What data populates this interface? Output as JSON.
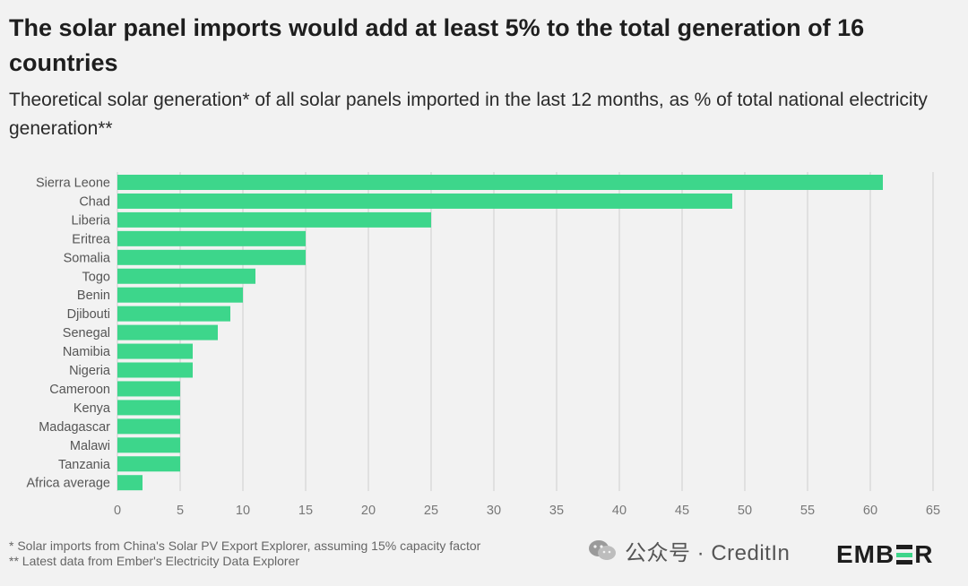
{
  "title": "The solar panel imports would add at least 5% to the total generation of 16 countries",
  "subtitle": "Theoretical solar generation* of all solar panels imported in the last 12 months, as % of total national electricity generation**",
  "footnotes": [
    "* Solar imports from China's Solar PV Export Explorer, assuming 15% capacity factor",
    "** Latest data from Ember's Electricity Data Explorer"
  ],
  "watermark": "公众号 · CreditIn",
  "logo": {
    "before": "EMB",
    "after": "R"
  },
  "colors": {
    "bar": "#3dd68b",
    "grid": "#cfcfcf",
    "background": "#f2f2f2",
    "accent": "#3ed58a"
  },
  "chart_data": {
    "type": "bar",
    "orientation": "horizontal",
    "title": "The solar panel imports would add at least 5% to the total generation of 16 countries",
    "subtitle": "Theoretical solar generation* of all solar panels imported in the last 12 months, as % of total national electricity generation**",
    "xlabel": "",
    "ylabel": "",
    "categories": [
      "Sierra Leone",
      "Chad",
      "Liberia",
      "Eritrea",
      "Somalia",
      "Togo",
      "Benin",
      "Djibouti",
      "Senegal",
      "Namibia",
      "Nigeria",
      "Cameroon",
      "Kenya",
      "Madagascar",
      "Malawi",
      "Tanzania",
      "Africa average"
    ],
    "values": [
      61,
      49,
      25,
      15,
      15,
      11,
      10,
      9,
      8,
      6,
      6,
      5,
      5,
      5,
      5,
      5,
      2
    ],
    "xlim": [
      0,
      65
    ],
    "xticks": [
      0,
      5,
      10,
      15,
      20,
      25,
      30,
      35,
      40,
      45,
      50,
      55,
      60,
      65
    ],
    "grid": "vertical"
  }
}
